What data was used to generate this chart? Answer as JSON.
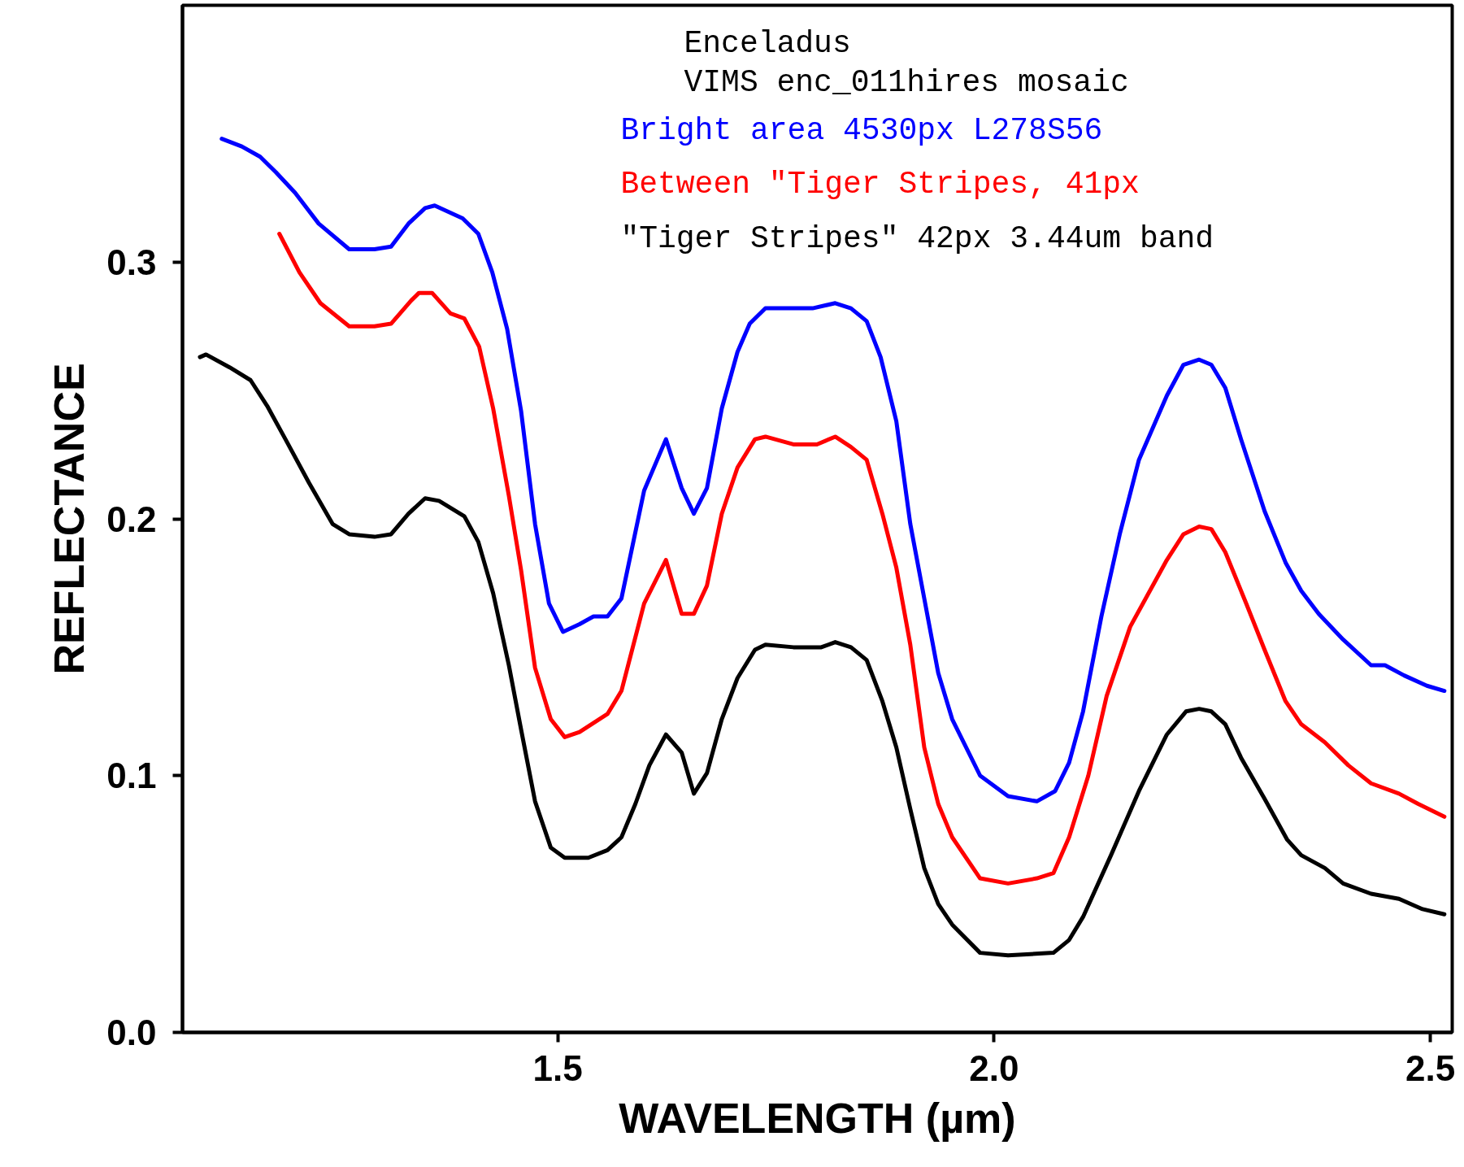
{
  "chart_data": {
    "type": "line",
    "xlabel": "WAVELENGTH (µm)",
    "ylabel": "REFLECTANCE",
    "annotations": [
      "Enceladus",
      "VIMS enc_011hires mosaic"
    ],
    "xlim": [
      1.07,
      2.525
    ],
    "ylim": [
      0,
      0.4
    ],
    "xticks": [
      {
        "value": 1.5,
        "label": "1.5"
      },
      {
        "value": 2.0,
        "label": "2.0"
      },
      {
        "value": 2.5,
        "label": "2.5"
      }
    ],
    "yticks": [
      {
        "value": 0,
        "label": "0.0"
      },
      0.1,
      0.2,
      0.3
    ],
    "grid": false,
    "legend": "top right",
    "marker": "none",
    "line_style": "solid",
    "series": [
      {
        "name": "Bright area 4530px L278S56",
        "color": "#0000ff",
        "x": [
          1.115,
          1.138,
          1.159,
          1.177,
          1.199,
          1.226,
          1.261,
          1.29,
          1.309,
          1.329,
          1.348,
          1.359,
          1.391,
          1.409,
          1.425,
          1.442,
          1.458,
          1.474,
          1.49,
          1.506,
          1.525,
          1.541,
          1.557,
          1.573,
          1.599,
          1.624,
          1.642,
          1.656,
          1.671,
          1.688,
          1.706,
          1.72,
          1.738,
          1.76,
          1.792,
          1.818,
          1.836,
          1.854,
          1.87,
          1.888,
          1.904,
          1.92,
          1.936,
          1.952,
          1.984,
          2.016,
          2.049,
          2.07,
          2.086,
          2.102,
          2.123,
          2.144,
          2.166,
          2.198,
          2.217,
          2.235,
          2.249,
          2.265,
          2.283,
          2.31,
          2.334,
          2.352,
          2.372,
          2.4,
          2.432,
          2.448,
          2.47,
          2.496,
          2.516
        ],
        "values": [
          0.348,
          0.345,
          0.341,
          0.335,
          0.327,
          0.315,
          0.305,
          0.305,
          0.306,
          0.315,
          0.321,
          0.322,
          0.317,
          0.311,
          0.296,
          0.274,
          0.242,
          0.198,
          0.167,
          0.156,
          0.159,
          0.162,
          0.162,
          0.169,
          0.211,
          0.231,
          0.212,
          0.202,
          0.212,
          0.243,
          0.265,
          0.276,
          0.282,
          0.282,
          0.282,
          0.284,
          0.282,
          0.277,
          0.263,
          0.238,
          0.198,
          0.169,
          0.14,
          0.122,
          0.1,
          0.092,
          0.09,
          0.094,
          0.105,
          0.125,
          0.162,
          0.194,
          0.223,
          0.248,
          0.26,
          0.262,
          0.26,
          0.251,
          0.231,
          0.203,
          0.183,
          0.172,
          0.163,
          0.153,
          0.143,
          0.143,
          0.139,
          0.135,
          0.133
        ]
      },
      {
        "name": "Between \"Tiger Stripes, 41px",
        "color": "#ff0000",
        "x": [
          1.181,
          1.204,
          1.228,
          1.261,
          1.29,
          1.309,
          1.332,
          1.341,
          1.356,
          1.377,
          1.393,
          1.41,
          1.426,
          1.444,
          1.458,
          1.474,
          1.492,
          1.508,
          1.525,
          1.557,
          1.573,
          1.599,
          1.624,
          1.642,
          1.656,
          1.671,
          1.688,
          1.706,
          1.726,
          1.738,
          1.77,
          1.797,
          1.818,
          1.836,
          1.854,
          1.872,
          1.888,
          1.904,
          1.92,
          1.936,
          1.952,
          1.984,
          2.016,
          2.049,
          2.068,
          2.086,
          2.108,
          2.129,
          2.156,
          2.198,
          2.217,
          2.235,
          2.249,
          2.265,
          2.289,
          2.31,
          2.334,
          2.352,
          2.379,
          2.406,
          2.432,
          2.464,
          2.486,
          2.516
        ],
        "values": [
          0.311,
          0.296,
          0.284,
          0.275,
          0.275,
          0.276,
          0.285,
          0.288,
          0.288,
          0.28,
          0.278,
          0.267,
          0.243,
          0.209,
          0.18,
          0.142,
          0.122,
          0.115,
          0.117,
          0.124,
          0.133,
          0.167,
          0.184,
          0.163,
          0.163,
          0.174,
          0.202,
          0.22,
          0.231,
          0.232,
          0.229,
          0.229,
          0.232,
          0.228,
          0.223,
          0.202,
          0.181,
          0.151,
          0.111,
          0.089,
          0.076,
          0.06,
          0.058,
          0.06,
          0.062,
          0.076,
          0.1,
          0.131,
          0.158,
          0.184,
          0.194,
          0.197,
          0.196,
          0.187,
          0.167,
          0.149,
          0.129,
          0.12,
          0.113,
          0.104,
          0.097,
          0.093,
          0.089,
          0.084
        ]
      },
      {
        "name": "\"Tiger Stripes\" 42px 3.44um band",
        "color": "#000000",
        "x": [
          1.09,
          1.097,
          1.124,
          1.148,
          1.167,
          1.188,
          1.215,
          1.242,
          1.261,
          1.29,
          1.309,
          1.329,
          1.348,
          1.364,
          1.393,
          1.409,
          1.426,
          1.444,
          1.458,
          1.474,
          1.492,
          1.508,
          1.535,
          1.557,
          1.573,
          1.589,
          1.605,
          1.624,
          1.642,
          1.656,
          1.671,
          1.688,
          1.706,
          1.726,
          1.738,
          1.77,
          1.802,
          1.818,
          1.836,
          1.854,
          1.872,
          1.888,
          1.904,
          1.92,
          1.936,
          1.952,
          1.984,
          2.016,
          2.068,
          2.086,
          2.102,
          2.134,
          2.166,
          2.198,
          2.22,
          2.235,
          2.249,
          2.265,
          2.283,
          2.31,
          2.336,
          2.352,
          2.379,
          2.4,
          2.432,
          2.464,
          2.491,
          2.516
        ],
        "values": [
          0.263,
          0.264,
          0.259,
          0.254,
          0.244,
          0.231,
          0.214,
          0.198,
          0.194,
          0.193,
          0.194,
          0.202,
          0.208,
          0.207,
          0.201,
          0.191,
          0.171,
          0.143,
          0.118,
          0.09,
          0.072,
          0.068,
          0.068,
          0.071,
          0.076,
          0.089,
          0.104,
          0.116,
          0.109,
          0.093,
          0.101,
          0.122,
          0.138,
          0.149,
          0.151,
          0.15,
          0.15,
          0.152,
          0.15,
          0.145,
          0.129,
          0.111,
          0.087,
          0.064,
          0.05,
          0.042,
          0.031,
          0.03,
          0.031,
          0.036,
          0.045,
          0.069,
          0.094,
          0.116,
          0.125,
          0.126,
          0.125,
          0.12,
          0.107,
          0.091,
          0.075,
          0.069,
          0.064,
          0.058,
          0.054,
          0.052,
          0.048,
          0.046
        ]
      }
    ]
  }
}
